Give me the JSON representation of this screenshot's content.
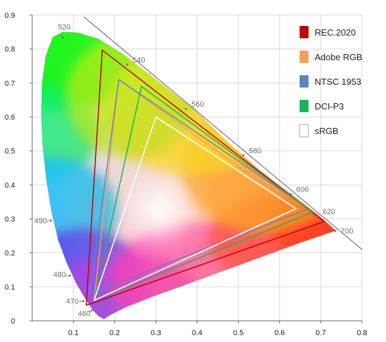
{
  "chart_data": {
    "type": "scatter",
    "title": "",
    "xlabel": "",
    "ylabel": "",
    "xlim": [
      0,
      0.8
    ],
    "ylim": [
      0,
      0.9
    ],
    "x_ticks": [
      {
        "value": 0.1,
        "label": "0.1"
      },
      {
        "value": 0.2,
        "label": "0.2"
      },
      {
        "value": 0.3,
        "label": "0.3"
      },
      {
        "value": 0.4,
        "label": "0.4"
      },
      {
        "value": 0.5,
        "label": "0.5"
      },
      {
        "value": 0.6,
        "label": "0.6"
      },
      {
        "value": 0.7,
        "label": "0.7"
      },
      {
        "value": 0.8,
        "label": "0.8"
      }
    ],
    "y_ticks": [
      {
        "value": 0,
        "label": "0"
      },
      {
        "value": 0.1,
        "label": "0.1"
      },
      {
        "value": 0.2,
        "label": "0.2"
      },
      {
        "value": 0.3,
        "label": "0.3"
      },
      {
        "value": 0.4,
        "label": "0.4"
      },
      {
        "value": 0.5,
        "label": "0.5"
      },
      {
        "value": 0.6,
        "label": "0.6"
      },
      {
        "value": 0.7,
        "label": "0.7"
      },
      {
        "value": 0.8,
        "label": "0.8"
      },
      {
        "value": 0.9,
        "label": "0.9"
      }
    ],
    "grid": true,
    "legend_position": "top-right",
    "spectral_locus_labels": [
      {
        "label": "460",
        "x": 0.144,
        "y": 0.03
      },
      {
        "label": "470",
        "x": 0.124,
        "y": 0.058
      },
      {
        "label": "480",
        "x": 0.091,
        "y": 0.133
      },
      {
        "label": "490",
        "x": 0.045,
        "y": 0.295
      },
      {
        "label": "520",
        "x": 0.074,
        "y": 0.834
      },
      {
        "label": "540",
        "x": 0.23,
        "y": 0.754
      },
      {
        "label": "560",
        "x": 0.373,
        "y": 0.624
      },
      {
        "label": "580",
        "x": 0.512,
        "y": 0.487
      },
      {
        "label": "600",
        "x": 0.627,
        "y": 0.373
      },
      {
        "label": "620",
        "x": 0.691,
        "y": 0.308
      },
      {
        "label": "700",
        "x": 0.735,
        "y": 0.265
      }
    ],
    "series": [
      {
        "name": "REC.2020",
        "color": "#c00000",
        "points": [
          {
            "x": 0.708,
            "y": 0.292
          },
          {
            "x": 0.17,
            "y": 0.797
          },
          {
            "x": 0.131,
            "y": 0.046
          }
        ]
      },
      {
        "name": "Adobe RGB",
        "color": "#f4a05a",
        "points": [
          {
            "x": 0.64,
            "y": 0.33
          },
          {
            "x": 0.21,
            "y": 0.71
          },
          {
            "x": 0.15,
            "y": 0.06
          }
        ]
      },
      {
        "name": "NTSC 1953",
        "color": "#5a86c8",
        "points": [
          {
            "x": 0.67,
            "y": 0.33
          },
          {
            "x": 0.21,
            "y": 0.71
          },
          {
            "x": 0.14,
            "y": 0.08
          }
        ]
      },
      {
        "name": "DCI-P3",
        "color": "#16b552",
        "points": [
          {
            "x": 0.68,
            "y": 0.32
          },
          {
            "x": 0.265,
            "y": 0.69
          },
          {
            "x": 0.15,
            "y": 0.06
          }
        ]
      },
      {
        "name": "sRGB",
        "color": "#ffffff",
        "points": [
          {
            "x": 0.64,
            "y": 0.33
          },
          {
            "x": 0.3,
            "y": 0.6
          },
          {
            "x": 0.15,
            "y": 0.06
          }
        ]
      }
    ]
  }
}
